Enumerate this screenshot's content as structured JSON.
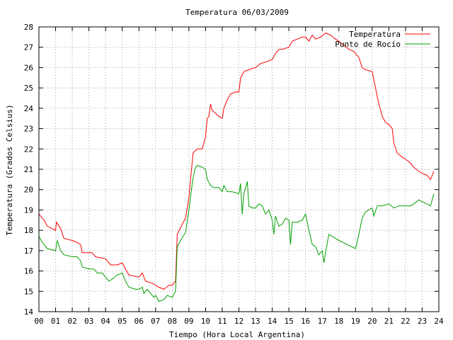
{
  "chart_data": {
    "type": "line",
    "title": "Temperatura 06/03/2009",
    "xlabel": "Tiempo (Hora Local Argentina)",
    "ylabel": "Temperatura (Grados Celsius)",
    "xlim": [
      0,
      24
    ],
    "ylim": [
      14,
      28
    ],
    "x_ticks": [
      0,
      1,
      2,
      3,
      4,
      5,
      6,
      7,
      8,
      9,
      10,
      11,
      12,
      13,
      14,
      15,
      16,
      17,
      18,
      19,
      20,
      21,
      22,
      23,
      24
    ],
    "x_tick_labels": [
      "00",
      "01",
      "02",
      "03",
      "04",
      "05",
      "06",
      "07",
      "08",
      "09",
      "10",
      "11",
      "12",
      "13",
      "14",
      "15",
      "16",
      "17",
      "18",
      "19",
      "20",
      "21",
      "22",
      "23",
      "24"
    ],
    "y_ticks": [
      14,
      15,
      16,
      17,
      18,
      19,
      20,
      21,
      22,
      23,
      24,
      25,
      26,
      27,
      28
    ],
    "y_tick_labels": [
      "14",
      "15",
      "16",
      "17",
      "18",
      "19",
      "20",
      "21",
      "22",
      "23",
      "24",
      "25",
      "26",
      "27",
      "28"
    ],
    "grid": true,
    "legend_position": "top-right",
    "series": [
      {
        "name": "Temperatura",
        "color": "#ff0000",
        "points": [
          [
            0.0,
            18.8
          ],
          [
            0.3,
            18.5
          ],
          [
            0.5,
            18.2
          ],
          [
            1.0,
            18.0
          ],
          [
            1.05,
            18.4
          ],
          [
            1.3,
            18.1
          ],
          [
            1.5,
            17.6
          ],
          [
            2.0,
            17.5
          ],
          [
            2.3,
            17.4
          ],
          [
            2.5,
            17.3
          ],
          [
            2.6,
            16.9
          ],
          [
            3.0,
            16.9
          ],
          [
            3.2,
            16.9
          ],
          [
            3.4,
            16.7
          ],
          [
            4.0,
            16.6
          ],
          [
            4.3,
            16.3
          ],
          [
            4.7,
            16.3
          ],
          [
            5.0,
            16.4
          ],
          [
            5.2,
            16.1
          ],
          [
            5.4,
            15.8
          ],
          [
            6.0,
            15.7
          ],
          [
            6.2,
            15.9
          ],
          [
            6.4,
            15.5
          ],
          [
            6.8,
            15.4
          ],
          [
            7.0,
            15.3
          ],
          [
            7.2,
            15.2
          ],
          [
            7.5,
            15.1
          ],
          [
            7.8,
            15.3
          ],
          [
            8.0,
            15.3
          ],
          [
            8.2,
            15.5
          ],
          [
            8.3,
            17.8
          ],
          [
            8.6,
            18.3
          ],
          [
            8.8,
            18.6
          ],
          [
            9.0,
            19.6
          ],
          [
            9.1,
            20.5
          ],
          [
            9.25,
            21.8
          ],
          [
            9.5,
            22.0
          ],
          [
            9.8,
            22.0
          ],
          [
            10.0,
            22.6
          ],
          [
            10.1,
            23.5
          ],
          [
            10.2,
            23.6
          ],
          [
            10.3,
            24.2
          ],
          [
            10.4,
            23.9
          ],
          [
            10.8,
            23.6
          ],
          [
            11.0,
            23.5
          ],
          [
            11.1,
            24.0
          ],
          [
            11.3,
            24.4
          ],
          [
            11.5,
            24.7
          ],
          [
            11.8,
            24.8
          ],
          [
            12.0,
            24.8
          ],
          [
            12.1,
            25.5
          ],
          [
            12.3,
            25.8
          ],
          [
            12.6,
            25.9
          ],
          [
            13.0,
            26.0
          ],
          [
            13.3,
            26.2
          ],
          [
            13.7,
            26.3
          ],
          [
            14.0,
            26.4
          ],
          [
            14.2,
            26.7
          ],
          [
            14.4,
            26.9
          ],
          [
            14.6,
            26.9
          ],
          [
            15.0,
            27.0
          ],
          [
            15.2,
            27.3
          ],
          [
            15.5,
            27.4
          ],
          [
            15.8,
            27.5
          ],
          [
            16.0,
            27.5
          ],
          [
            16.2,
            27.3
          ],
          [
            16.4,
            27.6
          ],
          [
            16.6,
            27.4
          ],
          [
            16.9,
            27.5
          ],
          [
            17.2,
            27.7
          ],
          [
            17.5,
            27.6
          ],
          [
            17.8,
            27.4
          ],
          [
            18.0,
            27.3
          ],
          [
            18.3,
            27.1
          ],
          [
            18.6,
            26.9
          ],
          [
            18.9,
            26.8
          ],
          [
            19.2,
            26.5
          ],
          [
            19.4,
            26.0
          ],
          [
            19.6,
            25.9
          ],
          [
            20.0,
            25.8
          ],
          [
            20.2,
            25.0
          ],
          [
            20.4,
            24.2
          ],
          [
            20.6,
            23.6
          ],
          [
            20.8,
            23.3
          ],
          [
            21.0,
            23.2
          ],
          [
            21.2,
            23.0
          ],
          [
            21.3,
            22.3
          ],
          [
            21.5,
            21.8
          ],
          [
            21.8,
            21.6
          ],
          [
            22.0,
            21.5
          ],
          [
            22.3,
            21.3
          ],
          [
            22.5,
            21.1
          ],
          [
            22.8,
            20.9
          ],
          [
            23.0,
            20.8
          ],
          [
            23.3,
            20.7
          ],
          [
            23.5,
            20.5
          ],
          [
            23.7,
            20.9
          ]
        ]
      },
      {
        "name": "Punto de Rocío",
        "color": "#00a000",
        "points": [
          [
            0.0,
            17.7
          ],
          [
            0.2,
            17.4
          ],
          [
            0.5,
            17.1
          ],
          [
            1.0,
            17.0
          ],
          [
            1.1,
            17.5
          ],
          [
            1.3,
            17.0
          ],
          [
            1.5,
            16.8
          ],
          [
            2.0,
            16.7
          ],
          [
            2.3,
            16.7
          ],
          [
            2.5,
            16.5
          ],
          [
            2.6,
            16.2
          ],
          [
            3.0,
            16.1
          ],
          [
            3.3,
            16.1
          ],
          [
            3.5,
            15.9
          ],
          [
            3.8,
            15.9
          ],
          [
            4.0,
            15.7
          ],
          [
            4.2,
            15.5
          ],
          [
            4.4,
            15.6
          ],
          [
            4.7,
            15.8
          ],
          [
            5.0,
            15.9
          ],
          [
            5.2,
            15.5
          ],
          [
            5.4,
            15.2
          ],
          [
            5.8,
            15.1
          ],
          [
            6.0,
            15.1
          ],
          [
            6.2,
            15.2
          ],
          [
            6.3,
            14.9
          ],
          [
            6.5,
            15.1
          ],
          [
            6.7,
            14.9
          ],
          [
            6.9,
            14.7
          ],
          [
            7.0,
            14.8
          ],
          [
            7.2,
            14.5
          ],
          [
            7.5,
            14.6
          ],
          [
            7.7,
            14.8
          ],
          [
            8.0,
            14.7
          ],
          [
            8.2,
            15.0
          ],
          [
            8.3,
            17.2
          ],
          [
            8.5,
            17.5
          ],
          [
            8.8,
            17.9
          ],
          [
            9.0,
            19.0
          ],
          [
            9.2,
            20.3
          ],
          [
            9.35,
            21.0
          ],
          [
            9.5,
            21.2
          ],
          [
            9.8,
            21.1
          ],
          [
            10.0,
            21.0
          ],
          [
            10.1,
            20.5
          ],
          [
            10.3,
            20.2
          ],
          [
            10.5,
            20.1
          ],
          [
            10.8,
            20.1
          ],
          [
            11.0,
            19.9
          ],
          [
            11.1,
            20.2
          ],
          [
            11.3,
            19.9
          ],
          [
            11.6,
            19.9
          ],
          [
            12.0,
            19.8
          ],
          [
            12.1,
            20.3
          ],
          [
            12.2,
            18.8
          ],
          [
            12.3,
            19.8
          ],
          [
            12.5,
            20.4
          ],
          [
            12.6,
            19.2
          ],
          [
            12.8,
            19.1
          ],
          [
            13.0,
            19.1
          ],
          [
            13.2,
            19.3
          ],
          [
            13.4,
            19.2
          ],
          [
            13.6,
            18.8
          ],
          [
            13.8,
            19.0
          ],
          [
            14.0,
            18.5
          ],
          [
            14.1,
            17.8
          ],
          [
            14.2,
            18.7
          ],
          [
            14.4,
            18.2
          ],
          [
            14.6,
            18.3
          ],
          [
            14.8,
            18.6
          ],
          [
            15.0,
            18.5
          ],
          [
            15.1,
            17.3
          ],
          [
            15.2,
            18.4
          ],
          [
            15.5,
            18.4
          ],
          [
            15.8,
            18.5
          ],
          [
            16.0,
            18.8
          ],
          [
            16.2,
            18.0
          ],
          [
            16.4,
            17.3
          ],
          [
            16.6,
            17.2
          ],
          [
            16.8,
            16.8
          ],
          [
            17.0,
            17.0
          ],
          [
            17.1,
            16.4
          ],
          [
            17.2,
            16.9
          ],
          [
            17.4,
            17.8
          ],
          [
            17.6,
            17.7
          ],
          [
            17.8,
            17.6
          ],
          [
            18.0,
            17.5
          ],
          [
            18.5,
            17.3
          ],
          [
            19.0,
            17.1
          ],
          [
            19.2,
            17.8
          ],
          [
            19.4,
            18.6
          ],
          [
            19.6,
            18.9
          ],
          [
            20.0,
            19.1
          ],
          [
            20.1,
            18.7
          ],
          [
            20.3,
            19.2
          ],
          [
            20.6,
            19.2
          ],
          [
            21.0,
            19.3
          ],
          [
            21.3,
            19.1
          ],
          [
            21.6,
            19.2
          ],
          [
            22.0,
            19.2
          ],
          [
            22.3,
            19.2
          ],
          [
            22.5,
            19.3
          ],
          [
            22.8,
            19.5
          ],
          [
            23.0,
            19.4
          ],
          [
            23.3,
            19.3
          ],
          [
            23.5,
            19.2
          ],
          [
            23.7,
            19.8
          ]
        ]
      }
    ]
  }
}
